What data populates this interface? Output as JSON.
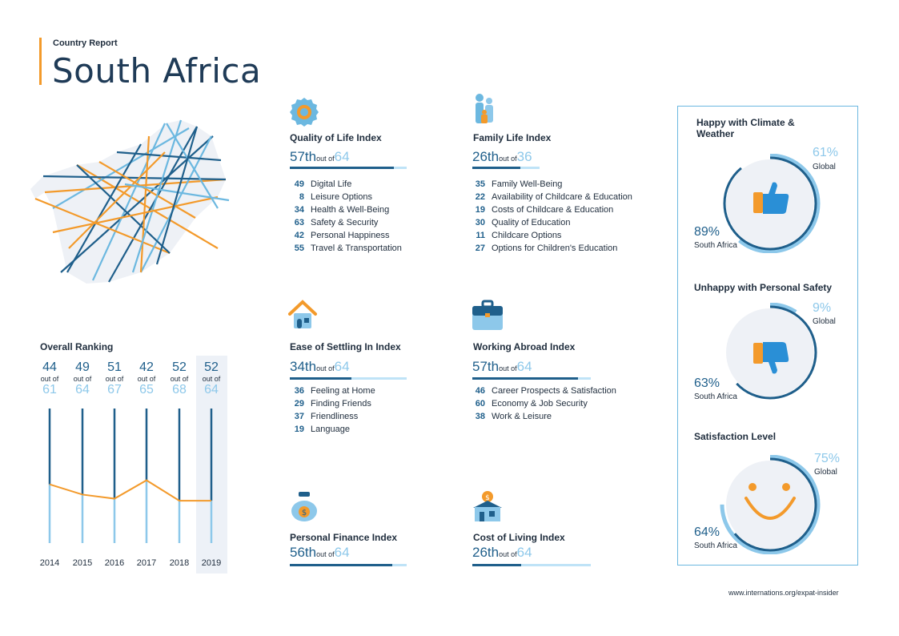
{
  "header": {
    "subtitle": "Country Report",
    "title": "South Africa"
  },
  "colors": {
    "dark_blue": "#1f5f8b",
    "light_blue": "#8dc8ea",
    "orange": "#f39a2b"
  },
  "overall": {
    "title": "Overall Ranking",
    "out_of_label": "out of",
    "columns": [
      {
        "year": "2014",
        "rank": "44",
        "total": "61"
      },
      {
        "year": "2015",
        "rank": "49",
        "total": "64"
      },
      {
        "year": "2016",
        "rank": "51",
        "total": "67"
      },
      {
        "year": "2017",
        "rank": "42",
        "total": "65"
      },
      {
        "year": "2018",
        "rank": "52",
        "total": "68"
      },
      {
        "year": "2019",
        "rank": "52",
        "total": "64"
      }
    ]
  },
  "indices": {
    "quality": {
      "icon": "award-badge-icon",
      "title": "Quality of Life Index",
      "rank": "57th",
      "of": "out of",
      "total": "64",
      "progress": 0.89,
      "items": [
        {
          "num": "49",
          "label": "Digital Life"
        },
        {
          "num": "8",
          "label": "Leisure Options"
        },
        {
          "num": "34",
          "label": "Health & Well-Being"
        },
        {
          "num": "63",
          "label": "Safety & Security"
        },
        {
          "num": "42",
          "label": "Personal Happiness"
        },
        {
          "num": "55",
          "label": "Travel & Transportation"
        }
      ]
    },
    "family": {
      "icon": "family-icon",
      "title": "Family Life Index",
      "rank": "26th",
      "of": "out of",
      "total": "36",
      "progress": 0.72,
      "items": [
        {
          "num": "35",
          "label": "Family Well-Being"
        },
        {
          "num": "22",
          "label": "Availability of Childcare & Education"
        },
        {
          "num": "19",
          "label": "Costs of Childcare & Education"
        },
        {
          "num": "30",
          "label": "Quality of Education"
        },
        {
          "num": "11",
          "label": "Childcare Options"
        },
        {
          "num": "27",
          "label": "Options for Children's Education"
        }
      ]
    },
    "settling": {
      "icon": "house-icon",
      "title": "Ease of Settling In Index",
      "rank": "34th",
      "of": "out of",
      "total": "64",
      "progress": 0.53,
      "items": [
        {
          "num": "36",
          "label": "Feeling at Home"
        },
        {
          "num": "29",
          "label": "Finding Friends"
        },
        {
          "num": "37",
          "label": "Friendliness"
        },
        {
          "num": "19",
          "label": "Language"
        }
      ]
    },
    "working": {
      "icon": "briefcase-icon",
      "title": "Working Abroad Index",
      "rank": "57th",
      "of": "out of",
      "total": "64",
      "progress": 0.89,
      "items": [
        {
          "num": "46",
          "label": "Career Prospects & Satisfaction"
        },
        {
          "num": "60",
          "label": "Economy & Job Security"
        },
        {
          "num": "38",
          "label": "Work & Leisure"
        }
      ]
    },
    "finance": {
      "icon": "money-bag-icon",
      "title": "Personal Finance Index",
      "rank": "56th",
      "of": "out of",
      "total": "64",
      "progress": 0.875
    },
    "cost": {
      "icon": "coin-house-icon",
      "title": "Cost of Living Index",
      "rank": "26th",
      "of": "out of",
      "total": "64",
      "progress": 0.41
    }
  },
  "panel": {
    "climate": {
      "title_line1": "Happy with Climate &",
      "title_line2": "Weather",
      "global_value": "61%",
      "global_label": "Global",
      "sa_value": "89%",
      "sa_label": "South Africa",
      "icon": "thumbs-up-icon"
    },
    "safety": {
      "title_line1": "Unhappy with Personal Safety",
      "global_value": "9%",
      "global_label": "Global",
      "sa_value": "63%",
      "sa_label": "South Africa",
      "icon": "thumbs-down-icon"
    },
    "satisfaction": {
      "title_line1": "Satisfaction Level",
      "global_value": "75%",
      "global_label": "Global",
      "sa_value": "64%",
      "sa_label": "South Africa",
      "icon": "smiley-icon"
    }
  },
  "footer": {
    "url": "www.internations.org/expat-insider"
  },
  "chart_data": [
    {
      "type": "line",
      "title": "Overall Ranking",
      "categories": [
        "2014",
        "2015",
        "2016",
        "2017",
        "2018",
        "2019"
      ],
      "series": [
        {
          "values": [
            44,
            49,
            51,
            42,
            52,
            52
          ]
        }
      ],
      "totals": [
        61,
        64,
        67,
        65,
        68,
        64
      ]
    },
    {
      "type": "pie",
      "title": "Happy with Climate & Weather",
      "series": [
        {
          "name": "Global",
          "values": [
            61
          ]
        },
        {
          "name": "South Africa",
          "values": [
            89
          ]
        }
      ]
    },
    {
      "type": "pie",
      "title": "Unhappy with Personal Safety",
      "series": [
        {
          "name": "Global",
          "values": [
            9
          ]
        },
        {
          "name": "South Africa",
          "values": [
            63
          ]
        }
      ]
    },
    {
      "type": "pie",
      "title": "Satisfaction Level",
      "series": [
        {
          "name": "Global",
          "values": [
            75
          ]
        },
        {
          "name": "South Africa",
          "values": [
            64
          ]
        }
      ]
    }
  ]
}
